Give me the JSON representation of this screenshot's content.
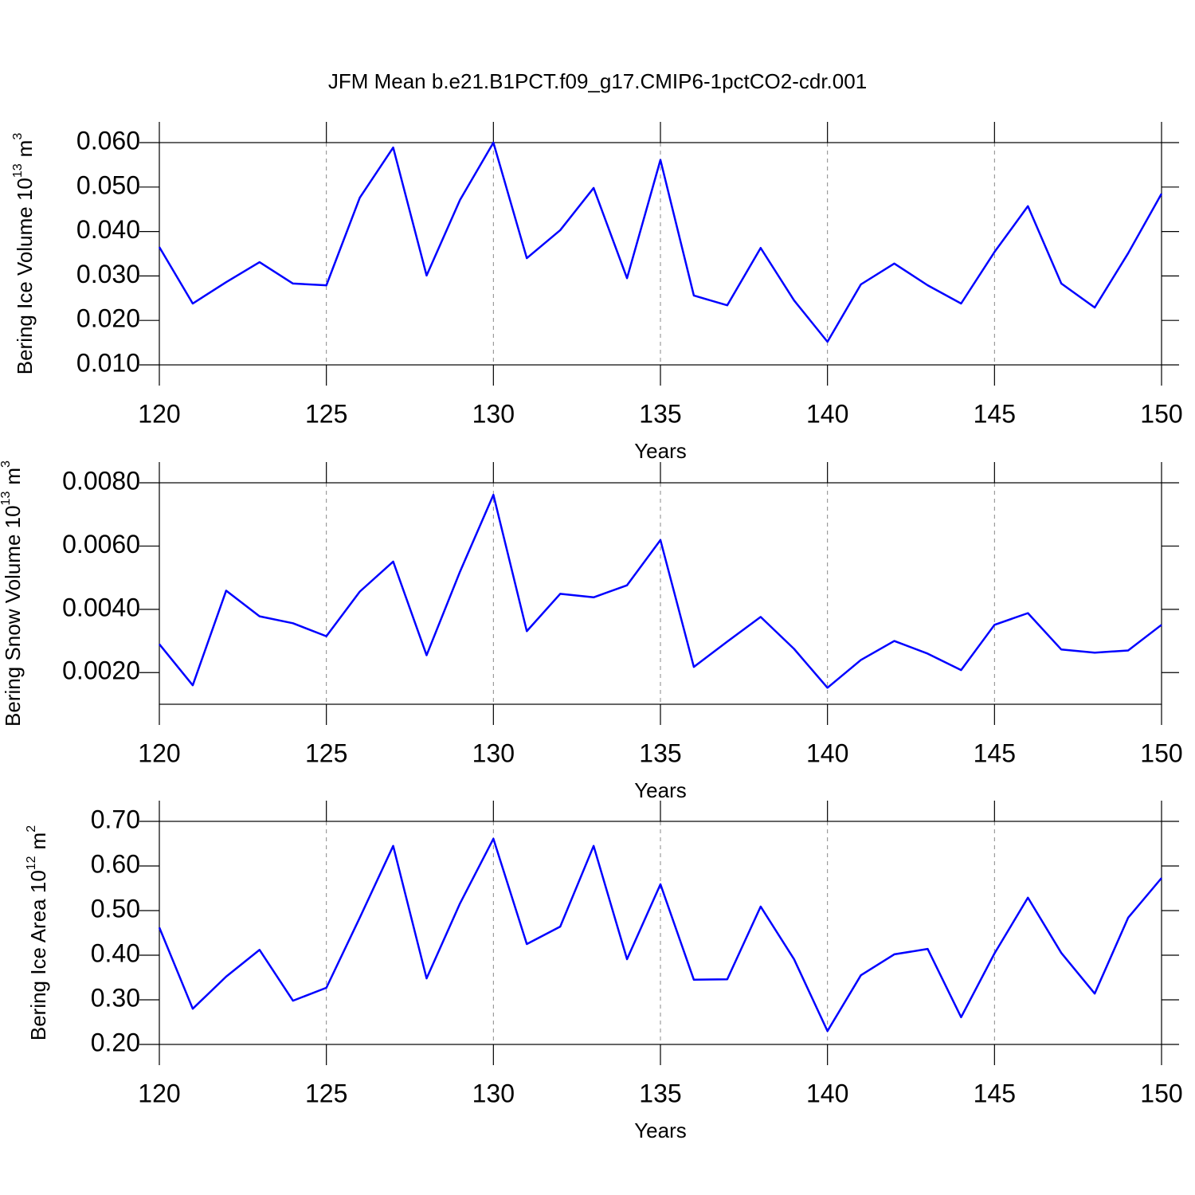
{
  "title": "JFM Mean b.e21.B1PCT.f09_g17.CMIP6-1pctCO2-cdr.001",
  "chart_data": [
    {
      "type": "line",
      "ylabel": {
        "text": "Bering Ice Volume 10",
        "exp": "13",
        "unit": "m",
        "unit_exp": "3"
      },
      "xlabel": "Years",
      "x": [
        120,
        121,
        122,
        123,
        124,
        125,
        126,
        127,
        128,
        129,
        130,
        131,
        132,
        133,
        134,
        135,
        136,
        137,
        138,
        139,
        140,
        141,
        142,
        143,
        144,
        145,
        146,
        147,
        148,
        149,
        150
      ],
      "series": [
        {
          "color": "#0000ff",
          "values": [
            0.0365,
            0.0238,
            0.0286,
            0.0331,
            0.0283,
            0.0279,
            0.0476,
            0.0589,
            0.0301,
            0.0471,
            0.06,
            0.034,
            0.0403,
            0.0498,
            0.0295,
            0.0561,
            0.0256,
            0.0234,
            0.0363,
            0.0245,
            0.0152,
            0.0281,
            0.0328,
            0.0279,
            0.0238,
            0.0354,
            0.0457,
            0.0283,
            0.0229,
            0.0351,
            0.0485
          ]
        }
      ],
      "xlim": [
        120,
        150
      ],
      "xticks": [
        120,
        125,
        130,
        135,
        140,
        145,
        150
      ],
      "ylim": [
        0.01,
        0.06
      ],
      "yticks": [
        {
          "value": 0.01,
          "label": "0.010"
        },
        {
          "value": 0.02,
          "label": "0.020"
        },
        {
          "value": 0.03,
          "label": "0.030"
        },
        {
          "value": 0.04,
          "label": "0.040"
        },
        {
          "value": 0.05,
          "label": "0.050"
        },
        {
          "value": 0.06,
          "label": "0.060"
        }
      ],
      "grid": "x-dashed"
    },
    {
      "type": "line",
      "ylabel": {
        "text": "Bering Snow Volume 10",
        "exp": "13",
        "unit": "m",
        "unit_exp": "3"
      },
      "xlabel": "Years",
      "x": [
        120,
        121,
        122,
        123,
        124,
        125,
        126,
        127,
        128,
        129,
        130,
        131,
        132,
        133,
        134,
        135,
        136,
        137,
        138,
        139,
        140,
        141,
        142,
        143,
        144,
        145,
        146,
        147,
        148,
        149,
        150
      ],
      "series": [
        {
          "color": "#0000ff",
          "values": [
            0.0029,
            0.0016,
            0.00459,
            0.00378,
            0.00356,
            0.00315,
            0.00456,
            0.00551,
            0.00255,
            0.00519,
            0.00762,
            0.00331,
            0.00449,
            0.00438,
            0.00476,
            0.00619,
            0.00218,
            0.00298,
            0.00376,
            0.00275,
            0.00152,
            0.0024,
            0.003,
            0.0026,
            0.00208,
            0.00351,
            0.00388,
            0.00273,
            0.00263,
            0.0027,
            0.00351
          ]
        }
      ],
      "xlim": [
        120,
        150
      ],
      "xticks": [
        120,
        125,
        130,
        135,
        140,
        145,
        150
      ],
      "ylim": [
        0.001,
        0.008
      ],
      "yticks": [
        {
          "value": 0.002,
          "label": "0.0020"
        },
        {
          "value": 0.004,
          "label": "0.0040"
        },
        {
          "value": 0.006,
          "label": "0.0060"
        },
        {
          "value": 0.008,
          "label": "0.0080"
        }
      ],
      "grid": "x-dashed"
    },
    {
      "type": "line",
      "ylabel": {
        "text": "Bering Ice Area 10",
        "exp": "12",
        "unit": "m",
        "unit_exp": "2"
      },
      "xlabel": "Years",
      "x": [
        120,
        121,
        122,
        123,
        124,
        125,
        126,
        127,
        128,
        129,
        130,
        131,
        132,
        133,
        134,
        135,
        136,
        137,
        138,
        139,
        140,
        141,
        142,
        143,
        144,
        145,
        146,
        147,
        148,
        149,
        150
      ],
      "series": [
        {
          "color": "#0000ff",
          "values": [
            0.462,
            0.28,
            0.352,
            0.412,
            0.298,
            0.327,
            0.484,
            0.645,
            0.348,
            0.516,
            0.661,
            0.425,
            0.464,
            0.645,
            0.391,
            0.559,
            0.345,
            0.346,
            0.509,
            0.391,
            0.23,
            0.355,
            0.402,
            0.414,
            0.261,
            0.404,
            0.529,
            0.405,
            0.314,
            0.484,
            0.573
          ]
        }
      ],
      "xlim": [
        120,
        150
      ],
      "xticks": [
        120,
        125,
        130,
        135,
        140,
        145,
        150
      ],
      "ylim": [
        0.2,
        0.7
      ],
      "yticks": [
        {
          "value": 0.2,
          "label": "0.20"
        },
        {
          "value": 0.3,
          "label": "0.30"
        },
        {
          "value": 0.4,
          "label": "0.40"
        },
        {
          "value": 0.5,
          "label": "0.50"
        },
        {
          "value": 0.6,
          "label": "0.60"
        },
        {
          "value": 0.7,
          "label": "0.70"
        }
      ],
      "grid": "x-dashed"
    }
  ]
}
